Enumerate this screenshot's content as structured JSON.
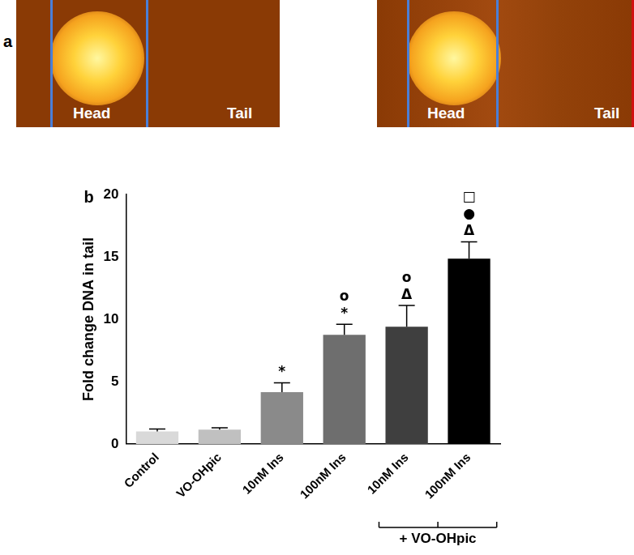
{
  "panel_a": {
    "label": "a",
    "images": [
      {
        "head": "Head",
        "tail": "Tail"
      },
      {
        "head": "Head",
        "tail": "Tail"
      }
    ]
  },
  "chart_data": {
    "type": "bar",
    "panel_label": "b",
    "y_label": "Fold change DNA in tail",
    "categories": [
      "Control",
      "VO-OHpic",
      "10nM Ins",
      "100nM Ins",
      "10nM Ins",
      "100nM Ins"
    ],
    "values": [
      1.0,
      1.15,
      4.15,
      8.75,
      9.4,
      14.85
    ],
    "errors": [
      0.2,
      0.15,
      0.75,
      0.85,
      1.7,
      1.35
    ],
    "colors": [
      "#d9d9d9",
      "#c0c0c0",
      "#8a8a8a",
      "#6e6e6e",
      "#3f3f3f",
      "#000000"
    ],
    "annotations": [
      [],
      [],
      [
        "*"
      ],
      [
        "o",
        "*"
      ],
      [
        "o",
        "Δ"
      ],
      [
        "□",
        "●",
        "Δ"
      ]
    ],
    "group_label": "+ VO-OHpic",
    "ylim": [
      0,
      20
    ],
    "yticks": [
      0,
      5,
      10,
      15,
      20
    ],
    "grid": false
  }
}
